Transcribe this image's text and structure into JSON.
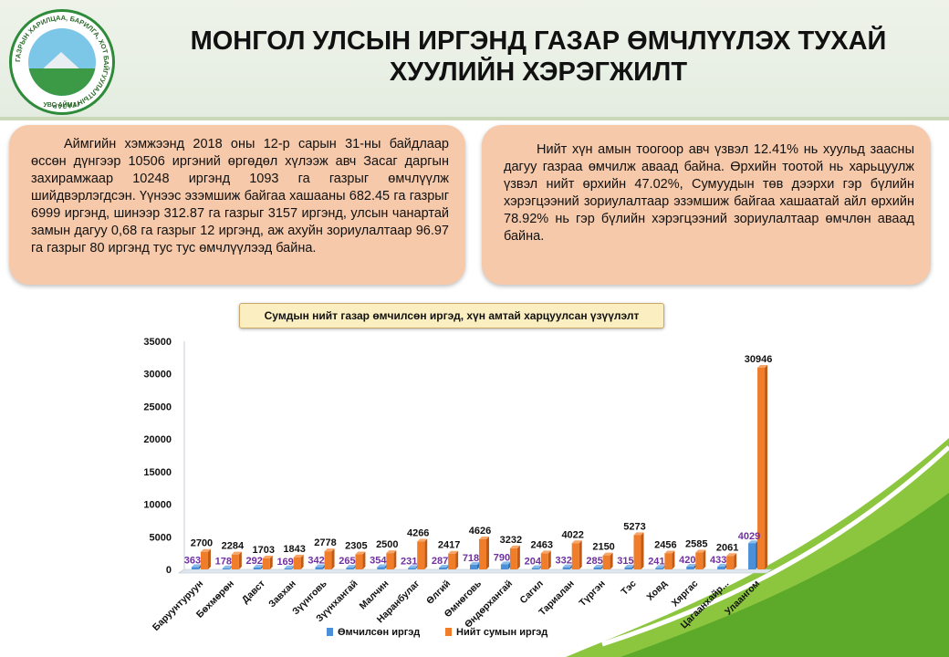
{
  "header": {
    "title_line1": "МОНГОЛ УЛСЫН ИРГЭНД ГАЗАР ӨМЧЛҮҮЛЭХ ТУХАЙ",
    "title_line2": "ХУУЛИЙН ХЭРЭГЖИЛТ",
    "logo_text_left": "ГАЗРЫН ХАРИЛЦАА, БАРИЛГА, ХОТ",
    "logo_text_right": "БАЙГУУЛАЛТЫН ГАЗАР",
    "logo_text_bottom": "УВС АЙМАГ"
  },
  "info_left": {
    "text": "Аймгийн хэмжээнд 2018 оны 12-р сарын 31-ны байдлаар өссөн дүнгээр 10506 иргэний өргөдөл хүлээж авч Засаг даргын захирамжаар 10248 иргэнд  1093 га газрыг  өмчлүүлж шийдвэрлэгдсэн. Үүнээс эзэмшиж байгаа хашааны 682.45 га газрыг 6999 иргэнд, шинээр 312.87 га газрыг 3157 иргэнд, улсын чанартай замын дагуу 0,68 га газрыг 12 иргэнд, аж ахуйн зориулалтаар 96.97 га газрыг 80 иргэнд тус тус өмчлүүлээд  байна."
  },
  "info_right": {
    "text": "Нийт хүн амын тоогоор авч үзвэл 12.41% нь хуульд заасны дагуу газраа өмчилж аваад байна. Өрхийн тоотой нь харьцуулж үзвэл нийт өрхийн 47.02%, Сумуудын төв дээрхи гэр бүлийн хэрэгцээний зориулалтаар эзэмшиж байгаа хашаатай айл өрхийн 78.92% нь гэр бүлийн хэрэгцээний зориулалтаар  өмчлөн аваад байна."
  },
  "chart_data": {
    "type": "bar",
    "title": "Сумдын нийт газар өмчилсөн иргэд, хүн амтай харцуулсан үзүүлэлт",
    "categories": [
      "Баруунтуруун",
      "Бөхмөрөн",
      "Давст",
      "Завхан",
      "Зүүнговь",
      "Зүүнхангай",
      "Малчин",
      "Наранбулаг",
      "Өлгий",
      "Өмнөговь",
      "Өндөрхангай",
      "Сагил",
      "Тариалан",
      "Түргэн",
      "Тэс",
      "Ховд",
      "Хяргас",
      "Цагаанхайр...",
      "Улаангом"
    ],
    "series": [
      {
        "name": "Өмчилсөн иргэд",
        "color": "#4a90d9",
        "values": [
          363,
          178,
          292,
          169,
          342,
          265,
          354,
          231,
          287,
          718,
          790,
          204,
          332,
          285,
          315,
          241,
          420,
          433,
          4029
        ]
      },
      {
        "name": "Нийт сумын иргэд",
        "color": "#f07d2a",
        "values": [
          2700,
          2284,
          1703,
          1843,
          2778,
          2305,
          2500,
          4266,
          2417,
          4626,
          3232,
          2463,
          4022,
          2150,
          5273,
          2456,
          2585,
          2061,
          30946
        ]
      }
    ],
    "ylim": [
      0,
      35000
    ],
    "yticks": [
      0,
      5000,
      10000,
      15000,
      20000,
      25000,
      30000,
      35000
    ],
    "legend_position": "bottom",
    "grid": false
  }
}
